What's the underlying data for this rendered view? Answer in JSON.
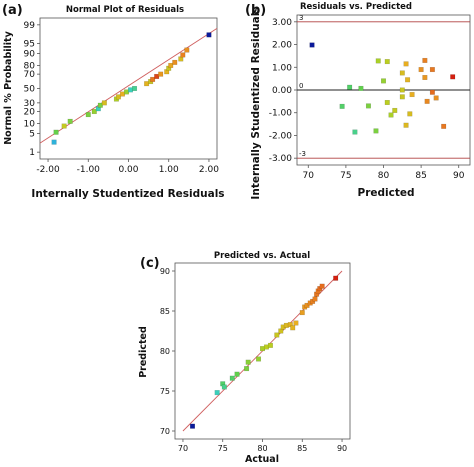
{
  "colors": {
    "fit_line": "#d06060",
    "ref_line": "#b04040",
    "zero_line": "#222222",
    "gradient": [
      "#0b1a9a",
      "#2aa8e0",
      "#38d0c8",
      "#58d050",
      "#b8d020",
      "#e8b020",
      "#e87a20",
      "#d42010"
    ]
  },
  "chart_data": [
    {
      "panel": "(a)",
      "type": "scatter",
      "title": "Normal Plot of Residuals",
      "xlabel": "Internally Studentized Residuals",
      "ylabel": "Normal % Probability",
      "xlim": [
        -2.2,
        2.2
      ],
      "xticks": [
        -2.0,
        -1.0,
        0.0,
        1.0,
        2.0
      ],
      "xtick_labels": [
        "-2.00",
        "-1.00",
        "0.00",
        "1.00",
        "2.00"
      ],
      "yticks": [
        1,
        5,
        10,
        20,
        30,
        50,
        70,
        80,
        90,
        95,
        99
      ],
      "ytick_labels": [
        "1",
        "5",
        "10",
        "20",
        "30",
        "50",
        "70",
        "80",
        "90",
        "95",
        "99"
      ],
      "fit_line": {
        "x": [
          -2.2,
          2.2
        ],
        "y": [
          2.3,
          98.6
        ]
      },
      "points": [
        {
          "x": -1.85,
          "y": 2.5,
          "c": 0.18
        },
        {
          "x": -1.8,
          "y": 5.5,
          "c": 0.45
        },
        {
          "x": -1.6,
          "y": 8.5,
          "c": 0.6
        },
        {
          "x": -1.45,
          "y": 11.5,
          "c": 0.48
        },
        {
          "x": -1.0,
          "y": 17,
          "c": 0.48
        },
        {
          "x": -0.85,
          "y": 20,
          "c": 0.52
        },
        {
          "x": -0.75,
          "y": 23,
          "c": 0.3
        },
        {
          "x": -0.7,
          "y": 27,
          "c": 0.48
        },
        {
          "x": -0.6,
          "y": 30,
          "c": 0.66
        },
        {
          "x": -0.3,
          "y": 35,
          "c": 0.56
        },
        {
          "x": -0.25,
          "y": 38,
          "c": 0.66
        },
        {
          "x": -0.15,
          "y": 42,
          "c": 0.72
        },
        {
          "x": -0.05,
          "y": 45,
          "c": 0.52
        },
        {
          "x": 0.05,
          "y": 48,
          "c": 0.3
        },
        {
          "x": 0.15,
          "y": 50,
          "c": 0.35
        },
        {
          "x": 0.45,
          "y": 57,
          "c": 0.7
        },
        {
          "x": 0.55,
          "y": 60,
          "c": 0.62
        },
        {
          "x": 0.6,
          "y": 63,
          "c": 0.86
        },
        {
          "x": 0.7,
          "y": 67,
          "c": 0.94
        },
        {
          "x": 0.8,
          "y": 70,
          "c": 0.78
        },
        {
          "x": 0.95,
          "y": 73,
          "c": 0.7
        },
        {
          "x": 1.0,
          "y": 77,
          "c": 0.62
        },
        {
          "x": 1.05,
          "y": 80,
          "c": 0.74
        },
        {
          "x": 1.15,
          "y": 83,
          "c": 0.8
        },
        {
          "x": 1.3,
          "y": 86,
          "c": 0.66
        },
        {
          "x": 1.35,
          "y": 89,
          "c": 0.84
        },
        {
          "x": 1.45,
          "y": 92,
          "c": 0.8
        },
        {
          "x": 2.0,
          "y": 97.5,
          "c": 0.0
        }
      ]
    },
    {
      "panel": "(b)",
      "type": "scatter",
      "title": "Residuals vs. Predicted",
      "xlabel": "Predicted",
      "ylabel": "Internally Studentized Residuals",
      "xlim": [
        68.5,
        91.5
      ],
      "ylim": [
        -3.3,
        3.3
      ],
      "xticks": [
        70,
        75,
        80,
        85,
        90
      ],
      "xtick_labels": [
        "70",
        "75",
        "80",
        "85",
        "90"
      ],
      "yticks": [
        -3,
        -2,
        -1,
        0,
        1,
        2,
        3
      ],
      "ytick_labels": [
        "-3.00",
        "-2.00",
        "-1.00",
        "0.00",
        "1.00",
        "2.00",
        "3.00"
      ],
      "ref_lines": [
        3,
        -3
      ],
      "ref_labels": [
        "3",
        "-3"
      ],
      "zero_label": "0",
      "points": [
        {
          "x": 70.5,
          "y": 1.98,
          "c": 0.0
        },
        {
          "x": 74.5,
          "y": -0.72,
          "c": 0.4
        },
        {
          "x": 75.5,
          "y": 0.12,
          "c": 0.4
        },
        {
          "x": 76.2,
          "y": -1.85,
          "c": 0.36
        },
        {
          "x": 77.0,
          "y": 0.07,
          "c": 0.44
        },
        {
          "x": 78.0,
          "y": -0.7,
          "c": 0.48
        },
        {
          "x": 79.0,
          "y": -1.8,
          "c": 0.48
        },
        {
          "x": 79.3,
          "y": 1.28,
          "c": 0.55
        },
        {
          "x": 80.0,
          "y": 0.4,
          "c": 0.52
        },
        {
          "x": 80.5,
          "y": 1.25,
          "c": 0.58
        },
        {
          "x": 80.5,
          "y": -0.55,
          "c": 0.58
        },
        {
          "x": 81.0,
          "y": -1.1,
          "c": 0.55
        },
        {
          "x": 81.5,
          "y": -0.9,
          "c": 0.6
        },
        {
          "x": 82.5,
          "y": 0.0,
          "c": 0.62
        },
        {
          "x": 82.5,
          "y": -0.3,
          "c": 0.62
        },
        {
          "x": 82.5,
          "y": 0.75,
          "c": 0.66
        },
        {
          "x": 83.0,
          "y": 1.15,
          "c": 0.72
        },
        {
          "x": 83.2,
          "y": 0.45,
          "c": 0.7
        },
        {
          "x": 83.5,
          "y": -1.05,
          "c": 0.66
        },
        {
          "x": 83.0,
          "y": -1.55,
          "c": 0.68
        },
        {
          "x": 83.8,
          "y": -0.2,
          "c": 0.72
        },
        {
          "x": 85.0,
          "y": 0.9,
          "c": 0.8
        },
        {
          "x": 85.5,
          "y": 0.55,
          "c": 0.78
        },
        {
          "x": 85.5,
          "y": 1.3,
          "c": 0.84
        },
        {
          "x": 85.8,
          "y": -0.5,
          "c": 0.82
        },
        {
          "x": 86.5,
          "y": 0.9,
          "c": 0.86
        },
        {
          "x": 86.5,
          "y": -0.1,
          "c": 0.88
        },
        {
          "x": 87.0,
          "y": -0.35,
          "c": 0.8
        },
        {
          "x": 88.0,
          "y": -1.6,
          "c": 0.86
        },
        {
          "x": 89.2,
          "y": 0.58,
          "c": 1.0
        }
      ]
    },
    {
      "panel": "(c)",
      "type": "scatter",
      "title": "Predicted vs. Actual",
      "xlabel": "Actual",
      "ylabel": "Predicted",
      "xlim": [
        69,
        91
      ],
      "ylim": [
        69,
        91
      ],
      "xticks": [
        70,
        75,
        80,
        85,
        90
      ],
      "xtick_labels": [
        "70",
        "75",
        "80",
        "85",
        "90"
      ],
      "yticks": [
        70,
        75,
        80,
        85,
        90
      ],
      "ytick_labels": [
        "70",
        "75",
        "80",
        "85",
        "90"
      ],
      "fit_line": {
        "x": [
          70,
          90
        ],
        "y": [
          70,
          90
        ]
      },
      "points": [
        {
          "x": 71.2,
          "y": 70.6,
          "c": 0.0
        },
        {
          "x": 74.3,
          "y": 74.8,
          "c": 0.3
        },
        {
          "x": 75.0,
          "y": 75.9,
          "c": 0.4
        },
        {
          "x": 75.2,
          "y": 75.5,
          "c": 0.36
        },
        {
          "x": 76.2,
          "y": 76.6,
          "c": 0.4
        },
        {
          "x": 76.8,
          "y": 77.1,
          "c": 0.44
        },
        {
          "x": 78.0,
          "y": 77.8,
          "c": 0.48
        },
        {
          "x": 78.2,
          "y": 78.6,
          "c": 0.5
        },
        {
          "x": 79.5,
          "y": 79.0,
          "c": 0.52
        },
        {
          "x": 80.0,
          "y": 80.3,
          "c": 0.55
        },
        {
          "x": 80.5,
          "y": 80.5,
          "c": 0.58
        },
        {
          "x": 81.0,
          "y": 80.7,
          "c": 0.58
        },
        {
          "x": 81.8,
          "y": 82.0,
          "c": 0.62
        },
        {
          "x": 82.3,
          "y": 82.5,
          "c": 0.64
        },
        {
          "x": 82.6,
          "y": 83.0,
          "c": 0.66
        },
        {
          "x": 83.0,
          "y": 83.2,
          "c": 0.68
        },
        {
          "x": 83.5,
          "y": 83.3,
          "c": 0.7
        },
        {
          "x": 83.8,
          "y": 82.9,
          "c": 0.7
        },
        {
          "x": 84.2,
          "y": 83.5,
          "c": 0.72
        },
        {
          "x": 85.0,
          "y": 84.8,
          "c": 0.76
        },
        {
          "x": 85.3,
          "y": 85.5,
          "c": 0.78
        },
        {
          "x": 85.6,
          "y": 85.7,
          "c": 0.8
        },
        {
          "x": 86.0,
          "y": 86.0,
          "c": 0.82
        },
        {
          "x": 86.3,
          "y": 86.2,
          "c": 0.84
        },
        {
          "x": 86.6,
          "y": 86.5,
          "c": 0.84
        },
        {
          "x": 86.8,
          "y": 87.1,
          "c": 0.86
        },
        {
          "x": 87.0,
          "y": 87.5,
          "c": 0.86
        },
        {
          "x": 87.2,
          "y": 87.8,
          "c": 0.88
        },
        {
          "x": 87.5,
          "y": 88.1,
          "c": 0.88
        },
        {
          "x": 89.2,
          "y": 89.1,
          "c": 1.0
        }
      ]
    }
  ]
}
